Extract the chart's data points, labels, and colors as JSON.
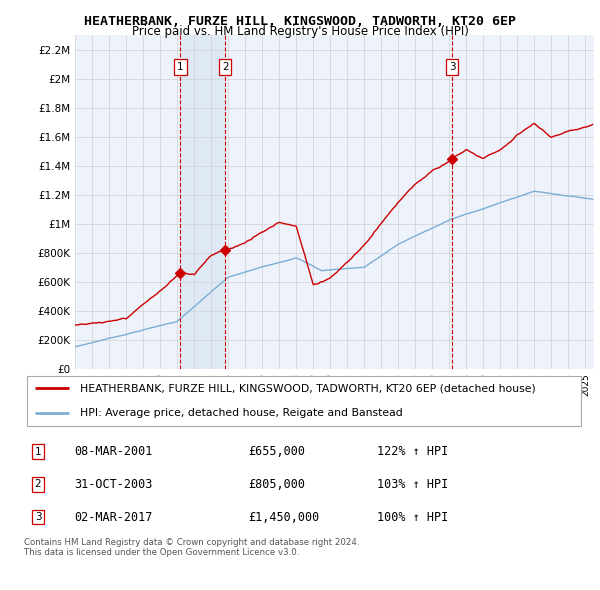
{
  "title": "HEATHERBANK, FURZE HILL, KINGSWOOD, TADWORTH, KT20 6EP",
  "subtitle": "Price paid vs. HM Land Registry's House Price Index (HPI)",
  "ylim": [
    0,
    2300000
  ],
  "yticks": [
    0,
    200000,
    400000,
    600000,
    800000,
    1000000,
    1200000,
    1400000,
    1600000,
    1800000,
    2000000,
    2200000
  ],
  "ytick_labels": [
    "£0",
    "£200K",
    "£400K",
    "£600K",
    "£800K",
    "£1M",
    "£1.2M",
    "£1.4M",
    "£1.6M",
    "£1.8M",
    "£2M",
    "£2.2M"
  ],
  "sale_color": "#cc0000",
  "hpi_color": "#7bafd4",
  "vline_color": "#cc0000",
  "shade_color": "#dce8f5",
  "sales": [
    {
      "date_num": 2001.19,
      "price": 655000,
      "label": "1"
    },
    {
      "date_num": 2003.83,
      "price": 805000,
      "label": "2"
    },
    {
      "date_num": 2017.17,
      "price": 1450000,
      "label": "3"
    }
  ],
  "legend_house_label": "HEATHERBANK, FURZE HILL, KINGSWOOD, TADWORTH, KT20 6EP (detached house)",
  "legend_hpi_label": "HPI: Average price, detached house, Reigate and Banstead",
  "table_data": [
    {
      "num": "1",
      "date": "08-MAR-2001",
      "price": "£655,000",
      "hpi": "122% ↑ HPI"
    },
    {
      "num": "2",
      "date": "31-OCT-2003",
      "price": "£805,000",
      "hpi": "103% ↑ HPI"
    },
    {
      "num": "3",
      "date": "02-MAR-2017",
      "price": "£1,450,000",
      "hpi": "100% ↑ HPI"
    }
  ],
  "footnote": "Contains HM Land Registry data © Crown copyright and database right 2024.\nThis data is licensed under the Open Government Licence v3.0.",
  "background_color": "#edf2fb",
  "chart_bg": "#ffffff"
}
